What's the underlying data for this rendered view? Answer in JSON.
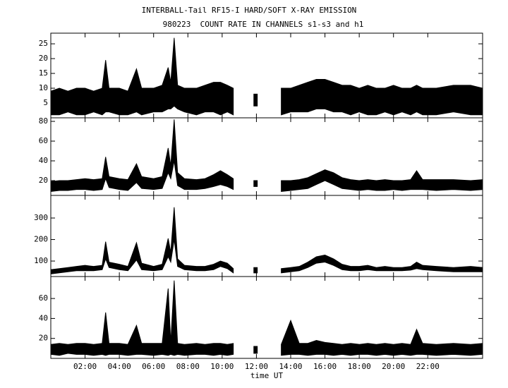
{
  "chart_data": [
    {
      "type": "band",
      "title": "INTERBALL-Tail RF15-I HARD/SOFT X-RAY EMISSION",
      "subtitle": "980223  COUNT RATE IN CHANNELS s1-s3 and h1",
      "x": [
        0,
        0.5,
        1,
        1.5,
        2,
        2.5,
        3,
        3.2,
        3.4,
        4,
        4.5,
        5.0,
        5.3,
        6,
        6.5,
        6.85,
        7.0,
        7.2,
        7.4,
        7.8,
        8.5,
        9,
        9.5,
        9.9,
        10.3,
        10.65,
        11.2,
        11.85,
        12.05,
        12.7,
        13.45,
        14,
        14.5,
        15,
        15.5,
        16,
        16.5,
        17,
        17.5,
        18,
        18.5,
        19,
        19.5,
        20,
        20.5,
        21,
        21.35,
        21.7,
        22.5,
        23.5,
        24.5,
        25.2
      ],
      "series": [
        {
          "color": "#000000",
          "values": [
            9,
            10,
            9,
            10,
            10,
            9,
            10,
            19.5,
            10,
            10,
            9,
            16.5,
            10,
            10,
            11,
            17,
            12,
            27,
            11,
            10,
            10,
            11,
            12,
            12,
            11,
            10,
            null,
            8,
            8,
            null,
            10,
            10,
            11,
            12,
            13,
            13,
            12,
            11,
            11,
            10,
            11,
            10,
            10,
            11,
            10,
            10,
            11,
            10,
            10,
            11,
            11,
            10
          ]
        },
        {
          "color": "#000000",
          "values": [
            1,
            1,
            2,
            1,
            1,
            2,
            1,
            2,
            2,
            1,
            1,
            2,
            1,
            2,
            2,
            3,
            3,
            4,
            3,
            2,
            1,
            2,
            2,
            1,
            2,
            1,
            null,
            4,
            4,
            null,
            1,
            2,
            2,
            2,
            3,
            3,
            2,
            2,
            1,
            2,
            1,
            1,
            2,
            1,
            2,
            1,
            2,
            1,
            1,
            2,
            1,
            1
          ]
        }
      ],
      "xlim": [
        0,
        25.2
      ],
      "xticks": [
        2,
        4,
        6,
        8,
        10,
        12,
        14,
        16,
        18,
        20,
        22
      ],
      "ylim": [
        0,
        28.6
      ],
      "yticks": [
        5,
        10,
        15,
        20,
        25
      ]
    },
    {
      "type": "band",
      "x": [
        0,
        0.5,
        1,
        1.5,
        2,
        2.5,
        3,
        3.2,
        3.4,
        4,
        4.5,
        5.0,
        5.3,
        6,
        6.5,
        6.85,
        7.0,
        7.2,
        7.4,
        7.8,
        8.5,
        9,
        9.5,
        9.9,
        10.3,
        10.65,
        11.2,
        11.85,
        12.05,
        12.7,
        13.45,
        14,
        14.5,
        15,
        15.5,
        16,
        16.5,
        17,
        17.5,
        18,
        18.5,
        19,
        19.5,
        20,
        20.5,
        21,
        21.35,
        21.7,
        22.5,
        23.5,
        24.5,
        25.2
      ],
      "series": [
        {
          "color": "#000000",
          "values": [
            19,
            20,
            20,
            21,
            22,
            21,
            22,
            44,
            24,
            22,
            21,
            37,
            24,
            22,
            24,
            53,
            35,
            82,
            28,
            22,
            21,
            22,
            26,
            30,
            26,
            22,
            null,
            20,
            20,
            null,
            20,
            20,
            21,
            23,
            27,
            31,
            28,
            23,
            21,
            20,
            21,
            20,
            21,
            20,
            20,
            21,
            30,
            21,
            21,
            21,
            20,
            21
          ]
        },
        {
          "color": "#000000",
          "values": [
            9,
            10,
            10,
            11,
            11,
            10,
            11,
            22,
            13,
            11,
            10,
            18,
            12,
            11,
            12,
            28,
            22,
            40,
            15,
            11,
            11,
            12,
            14,
            16,
            14,
            11,
            null,
            14,
            14,
            null,
            9,
            10,
            11,
            12,
            16,
            20,
            16,
            12,
            11,
            10,
            11,
            10,
            10,
            11,
            10,
            11,
            11,
            11,
            10,
            11,
            10,
            11
          ]
        }
      ],
      "xlim": [
        0,
        25.2
      ],
      "xticks": [
        2,
        4,
        6,
        8,
        10,
        12,
        14,
        16,
        18,
        20,
        22
      ],
      "ylim": [
        5,
        83.6
      ],
      "yticks": [
        20,
        40,
        60,
        80
      ]
    },
    {
      "type": "band",
      "x": [
        0,
        0.5,
        1,
        1.5,
        2,
        2.5,
        3,
        3.2,
        3.4,
        4,
        4.5,
        5.0,
        5.3,
        6,
        6.5,
        6.85,
        7.0,
        7.2,
        7.4,
        7.8,
        8.5,
        9,
        9.5,
        9.9,
        10.3,
        10.65,
        11.2,
        11.85,
        12.05,
        12.7,
        13.45,
        14,
        14.5,
        15,
        15.5,
        16,
        16.5,
        17,
        17.5,
        18,
        18.5,
        19,
        19.5,
        20,
        20.5,
        21,
        21.35,
        21.7,
        22.5,
        23.5,
        24.5,
        25.2
      ],
      "series": [
        {
          "color": "#000000",
          "values": [
            60,
            65,
            70,
            75,
            80,
            75,
            80,
            190,
            95,
            85,
            75,
            185,
            90,
            75,
            85,
            205,
            140,
            350,
            110,
            80,
            75,
            75,
            85,
            100,
            90,
            65,
            null,
            70,
            70,
            null,
            65,
            70,
            75,
            95,
            120,
            128,
            110,
            85,
            75,
            75,
            80,
            70,
            75,
            70,
            70,
            75,
            95,
            80,
            75,
            70,
            75,
            70
          ]
        },
        {
          "color": "#000000",
          "values": [
            40,
            45,
            50,
            55,
            55,
            55,
            60,
            110,
            70,
            60,
            55,
            105,
            60,
            55,
            60,
            120,
            95,
            200,
            75,
            60,
            55,
            55,
            60,
            75,
            65,
            45,
            null,
            45,
            45,
            null,
            45,
            50,
            55,
            70,
            90,
            95,
            80,
            60,
            55,
            55,
            60,
            55,
            55,
            55,
            55,
            58,
            65,
            60,
            55,
            50,
            50,
            50
          ]
        }
      ],
      "xlim": [
        0,
        25.2
      ],
      "xticks": [
        2,
        4,
        6,
        8,
        10,
        12,
        14,
        16,
        18,
        20,
        22
      ],
      "ylim": [
        28,
        405
      ],
      "yticks": [
        100,
        200,
        300
      ]
    },
    {
      "type": "band",
      "xlabel": "time UT",
      "x": [
        0,
        0.5,
        1,
        1.5,
        2,
        2.5,
        3,
        3.2,
        3.4,
        4,
        4.5,
        5.0,
        5.3,
        6,
        6.5,
        6.85,
        7.0,
        7.2,
        7.4,
        7.8,
        8.5,
        9,
        9.5,
        9.9,
        10.3,
        10.65,
        11.2,
        11.85,
        12.05,
        12.7,
        13.45,
        14,
        14.5,
        15,
        15.5,
        16,
        16.5,
        17,
        17.5,
        18,
        18.5,
        19,
        19.5,
        20,
        20.5,
        21,
        21.35,
        21.7,
        22.5,
        23.5,
        24.5,
        25.2
      ],
      "series": [
        {
          "color": "#000000",
          "values": [
            14,
            15,
            14,
            15,
            15,
            14,
            15,
            46,
            15,
            15,
            14,
            33,
            15,
            15,
            15,
            70,
            16,
            78,
            15,
            14,
            15,
            14,
            15,
            15,
            14,
            15,
            null,
            12,
            12,
            null,
            14,
            38,
            15,
            15,
            18,
            16,
            15,
            14,
            15,
            14,
            15,
            14,
            15,
            14,
            15,
            14,
            29,
            15,
            14,
            15,
            14,
            15
          ]
        },
        {
          "color": "#000000",
          "values": [
            4,
            3,
            5,
            4,
            4,
            3,
            4,
            3,
            4,
            4,
            3,
            4,
            4,
            3,
            4,
            3,
            4,
            3,
            4,
            3,
            4,
            4,
            3,
            4,
            3,
            4,
            null,
            5,
            5,
            null,
            3,
            4,
            4,
            3,
            4,
            4,
            3,
            4,
            3,
            4,
            4,
            3,
            4,
            3,
            4,
            3,
            4,
            4,
            3,
            4,
            3,
            4
          ]
        }
      ],
      "xlim": [
        0,
        25.2
      ],
      "xticks": [
        {
          "value": 2,
          "label": "02:00"
        },
        {
          "value": 4,
          "label": "04:00"
        },
        {
          "value": 6,
          "label": "06:00"
        },
        {
          "value": 8,
          "label": "08:00"
        },
        {
          "value": 10,
          "label": "10:00"
        },
        {
          "value": 12,
          "label": "12:00"
        },
        {
          "value": 14,
          "label": "14:00"
        },
        {
          "value": 16,
          "label": "16:00"
        },
        {
          "value": 18,
          "label": "18:00"
        },
        {
          "value": 20,
          "label": "20:00"
        },
        {
          "value": 22,
          "label": "22:00"
        }
      ],
      "ylim": [
        0,
        82
      ],
      "yticks": [
        20,
        40,
        60
      ]
    }
  ]
}
